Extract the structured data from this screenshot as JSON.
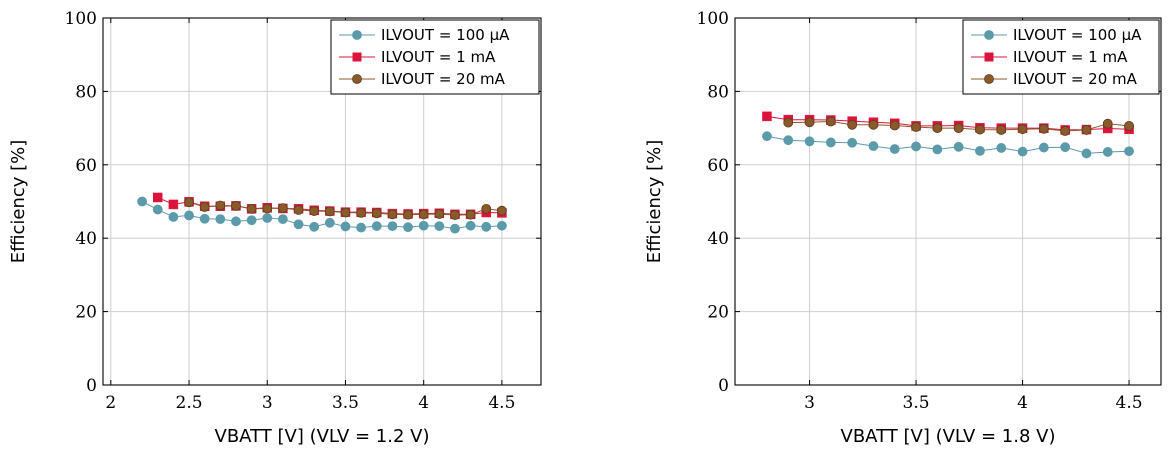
{
  "chart_data": [
    {
      "type": "line",
      "xlabel": "VBATT [V] (VLV = 1.2 V)",
      "ylabel": "Efficiency [%]",
      "xlim": [
        1.95,
        4.75
      ],
      "ylim": [
        0,
        100
      ],
      "xticks": [
        "2",
        "2.5",
        "3",
        "3.5",
        "4",
        "4.5"
      ],
      "yticks": [
        "0",
        "20",
        "40",
        "60",
        "80",
        "100"
      ],
      "grid": true,
      "legend": "top-right",
      "series": [
        {
          "name": "ILVOUT = 100 μA",
          "color": "#5b9aa9",
          "marker": "circle",
          "x": [
            2.2,
            2.3,
            2.4,
            2.5,
            2.6,
            2.7,
            2.8,
            2.9,
            3.0,
            3.1,
            3.2,
            3.3,
            3.4,
            3.5,
            3.6,
            3.7,
            3.8,
            3.9,
            4.0,
            4.1,
            4.2,
            4.3,
            4.4,
            4.5
          ],
          "y": [
            50.0,
            47.8,
            45.8,
            46.2,
            45.3,
            45.2,
            44.6,
            44.9,
            45.5,
            45.2,
            43.8,
            43.1,
            44.2,
            43.2,
            42.9,
            43.3,
            43.3,
            43.0,
            43.4,
            43.3,
            42.6,
            43.4,
            43.1,
            43.4
          ]
        },
        {
          "name": "ILVOUT = 1 mA",
          "color": "#dc143c",
          "marker": "square",
          "x": [
            2.3,
            2.4,
            2.5,
            2.6,
            2.7,
            2.8,
            2.9,
            3.0,
            3.1,
            3.2,
            3.3,
            3.4,
            3.5,
            3.6,
            3.7,
            3.8,
            3.9,
            4.0,
            4.1,
            4.2,
            4.3,
            4.4,
            4.5
          ],
          "y": [
            51.1,
            49.2,
            49.9,
            48.7,
            48.7,
            48.8,
            48.0,
            48.3,
            48.1,
            48.0,
            47.6,
            47.4,
            47.1,
            47.1,
            47.0,
            46.7,
            46.6,
            46.7,
            46.8,
            46.5,
            46.5,
            47.0,
            46.9
          ]
        },
        {
          "name": "ILVOUT = 20 mA",
          "color": "#8b5a2b",
          "marker": "circle",
          "x": [
            2.5,
            2.6,
            2.7,
            2.8,
            2.9,
            3.0,
            3.1,
            3.2,
            3.3,
            3.4,
            3.5,
            3.6,
            3.7,
            3.8,
            3.9,
            4.0,
            4.1,
            4.2,
            4.3,
            4.4,
            4.5
          ],
          "y": [
            49.8,
            48.5,
            48.9,
            48.8,
            48.0,
            48.1,
            48.2,
            47.7,
            47.4,
            47.3,
            47.0,
            46.9,
            46.8,
            46.5,
            46.4,
            46.5,
            46.6,
            46.3,
            46.4,
            48.0,
            47.5
          ]
        }
      ]
    },
    {
      "type": "line",
      "xlabel": "VBATT [V] (VLV = 1.8 V)",
      "ylabel": "Efficiency [%]",
      "xlim": [
        2.65,
        4.65
      ],
      "ylim": [
        0,
        100
      ],
      "xticks": [
        "3",
        "3.5",
        "4",
        "4.5"
      ],
      "yticks": [
        "0",
        "20",
        "40",
        "60",
        "80",
        "100"
      ],
      "grid": true,
      "legend": "top-right",
      "series": [
        {
          "name": "ILVOUT = 100 μA",
          "color": "#5b9aa9",
          "marker": "circle",
          "x": [
            2.8,
            2.9,
            3.0,
            3.1,
            3.2,
            3.3,
            3.4,
            3.5,
            3.6,
            3.7,
            3.8,
            3.9,
            4.0,
            4.1,
            4.2,
            4.3,
            4.4,
            4.5
          ],
          "y": [
            67.8,
            66.7,
            66.4,
            66.1,
            66.0,
            65.1,
            64.3,
            65.0,
            64.2,
            64.9,
            63.8,
            64.6,
            63.6,
            64.7,
            64.8,
            63.1,
            63.5,
            63.7
          ]
        },
        {
          "name": "ILVOUT = 1 mA",
          "color": "#dc143c",
          "marker": "square",
          "x": [
            2.8,
            2.9,
            3.0,
            3.1,
            3.2,
            3.3,
            3.4,
            3.5,
            3.6,
            3.7,
            3.8,
            3.9,
            4.0,
            4.1,
            4.2,
            4.3,
            4.4,
            4.5
          ],
          "y": [
            73.2,
            72.3,
            72.3,
            72.2,
            71.9,
            71.6,
            71.3,
            70.6,
            70.6,
            70.7,
            70.1,
            70.0,
            70.0,
            70.0,
            69.5,
            69.6,
            69.9,
            69.7
          ]
        },
        {
          "name": "ILVOUT = 20 mA",
          "color": "#8b5a2b",
          "marker": "circle",
          "x": [
            2.9,
            3.0,
            3.1,
            3.2,
            3.3,
            3.4,
            3.5,
            3.6,
            3.7,
            3.8,
            3.9,
            4.0,
            4.1,
            4.2,
            4.3,
            4.4,
            4.5
          ],
          "y": [
            71.5,
            71.6,
            71.8,
            70.9,
            70.9,
            70.7,
            70.3,
            70.0,
            70.0,
            69.6,
            69.5,
            69.7,
            69.8,
            69.2,
            69.5,
            71.2,
            70.6
          ]
        }
      ]
    }
  ]
}
